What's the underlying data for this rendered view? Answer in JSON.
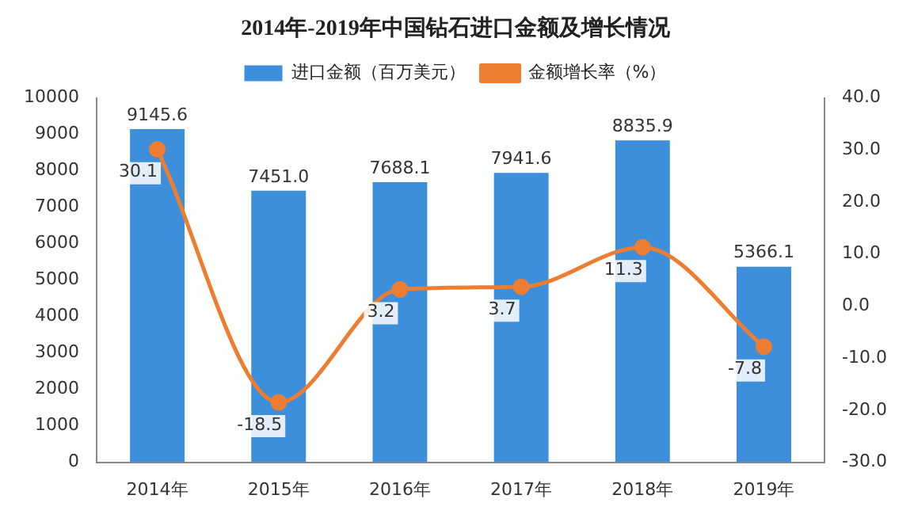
{
  "chart_data": {
    "type": "bar",
    "title": "2014年-2019年中国钻石进口金额及增长情况",
    "categories": [
      "2014年",
      "2015年",
      "2016年",
      "2017年",
      "2018年",
      "2019年"
    ],
    "series": [
      {
        "name": "进口金额（百万美元）",
        "color": "#3d8fdb",
        "values": [
          9145.6,
          7451.0,
          7688.1,
          7941.6,
          8835.9,
          5366.1
        ],
        "value_labels": [
          "9145.6",
          "7451.0",
          "7688.1",
          "7941.6",
          "8835.9",
          "5366.1"
        ]
      },
      {
        "name": "金额增长率（%）",
        "type": "line",
        "axis": "y2",
        "color": "#ed7d31",
        "values": [
          30.1,
          -18.5,
          3.2,
          3.7,
          11.3,
          -7.8
        ],
        "value_labels": [
          "30.1",
          "-18.5",
          "3.2",
          "3.7",
          "11.3",
          "-7.8"
        ]
      }
    ],
    "ylim": [
      0,
      10000
    ],
    "yticks": [
      0,
      1000,
      2000,
      3000,
      4000,
      5000,
      6000,
      7000,
      8000,
      9000,
      10000
    ],
    "y2lim": [
      -30,
      40
    ],
    "y2ticks": [
      {
        "value": -30,
        "label": "-30.0"
      },
      {
        "value": -20,
        "label": "-20.0"
      },
      {
        "value": -10,
        "label": "-10.0"
      },
      {
        "value": 0,
        "label": "0.0"
      },
      {
        "value": 10,
        "label": "10.0"
      },
      {
        "value": 20,
        "label": "20.0"
      },
      {
        "value": 30,
        "label": "30.0"
      },
      {
        "value": 40,
        "label": "40.0"
      }
    ],
    "legend": "top",
    "grid": false,
    "marker": "circle",
    "line_style": "solid"
  }
}
